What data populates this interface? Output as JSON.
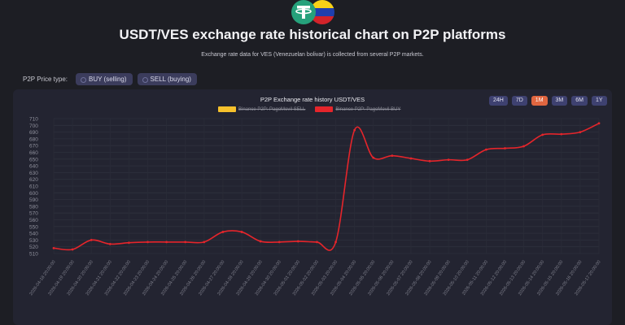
{
  "header": {
    "title": "USDT/VES exchange rate historical chart on P2P platforms",
    "subtitle": "Exchange rate data for VES (Venezuelan bolivar) is collected from several P2P markets."
  },
  "logo": {
    "left_icon": "tether-logo-icon",
    "right_icon": "venezuela-flag-icon",
    "tether_color": "#26a17b"
  },
  "price_type": {
    "label": "P2P Price type:",
    "options": [
      "BUY (selling)",
      "SELL (buying)"
    ]
  },
  "ranges": [
    "24H",
    "7D",
    "1M",
    "3M",
    "6M",
    "1Y"
  ],
  "colors": {
    "accent": "#e06640",
    "line": "#e5252b",
    "sell": "#f6c12c",
    "buy": "#e5252b"
  },
  "chart_data": {
    "type": "line",
    "title": "P2P Exchange rate history USDT/VES",
    "legend": [
      {
        "name": "Binance P2P: PagoMovil SELL",
        "color": "#f6c12c",
        "hidden": true
      },
      {
        "name": "Binance P2P: PagoMovil BUY",
        "color": "#e5252b",
        "hidden": false
      }
    ],
    "ylim": [
      510,
      710
    ],
    "yticks": [
      510,
      520,
      530,
      540,
      550,
      560,
      570,
      580,
      590,
      600,
      610,
      620,
      630,
      640,
      650,
      660,
      670,
      680,
      690,
      700,
      710
    ],
    "grid": true,
    "x": [
      "2026-04-18 20:00:00",
      "2026-04-19 20:00:00",
      "2026-04-20 20:00:00",
      "2026-04-21 20:00:00",
      "2026-04-22 20:00:00",
      "2026-04-23 20:00:00",
      "2026-04-24 20:00:00",
      "2026-04-25 20:00:00",
      "2026-04-26 20:00:00",
      "2026-04-27 20:00:00",
      "2026-04-28 20:00:00",
      "2026-04-29 20:00:00",
      "2026-04-30 20:00:00",
      "2026-05-01 20:00:00",
      "2026-05-02 20:00:00",
      "2026-05-03 20:00:00",
      "2026-05-04 20:00:00",
      "2026-05-05 20:00:00",
      "2026-05-06 20:00:00",
      "2026-05-07 20:00:00",
      "2026-05-08 20:00:00",
      "2026-05-09 20:00:00",
      "2026-05-10 20:00:00",
      "2026-05-11 20:00:00",
      "2026-05-12 20:00:00",
      "2026-05-13 20:00:00",
      "2026-05-14 20:00:00",
      "2026-05-15 20:00:00",
      "2026-05-16 20:00:00",
      "2026-05-17 20:00:00"
    ],
    "series": [
      {
        "name": "Binance P2P: PagoMovil BUY",
        "values": [
          518,
          516,
          530,
          524,
          526,
          527,
          527,
          527,
          527,
          542,
          542,
          528,
          527,
          528,
          527,
          527,
          693,
          652,
          655,
          651,
          647,
          649,
          649,
          664,
          666,
          669,
          686,
          687,
          690,
          703
        ]
      }
    ]
  }
}
